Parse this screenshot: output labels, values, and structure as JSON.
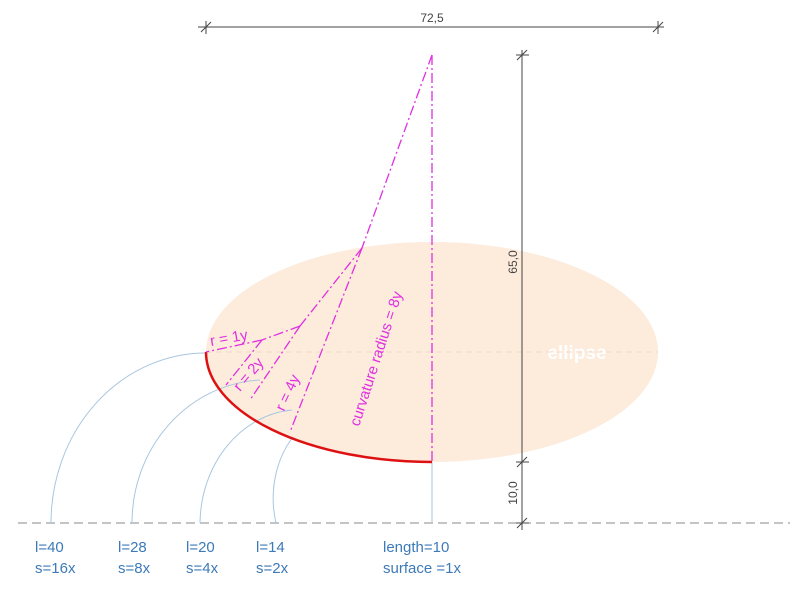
{
  "dimensions": {
    "width_label": "72,5",
    "upper_height_label": "65,0",
    "lower_height_label": "10,0"
  },
  "ellipse": {
    "label": "ellipse",
    "fill_color": "#fdebdc"
  },
  "radius_labels": {
    "r1": "r = 1y",
    "r2": "r = 2y",
    "r4": "r = 4y",
    "r8": "curvature radius = 8y"
  },
  "baseline_labels": [
    {
      "length": "l=40",
      "surface": "s=16x"
    },
    {
      "length": "l=28",
      "surface": "s=8x"
    },
    {
      "length": "l=20",
      "surface": "s=4x"
    },
    {
      "length": "l=14",
      "surface": "s=2x"
    },
    {
      "length": "length=10",
      "surface": "surface =1x"
    }
  ],
  "colors": {
    "magenta": "#e030e0",
    "red_arc": "#dd1111",
    "blue": "#3d7ab8",
    "arc_blue": "#a9c6e0",
    "dimension": "#444444"
  }
}
